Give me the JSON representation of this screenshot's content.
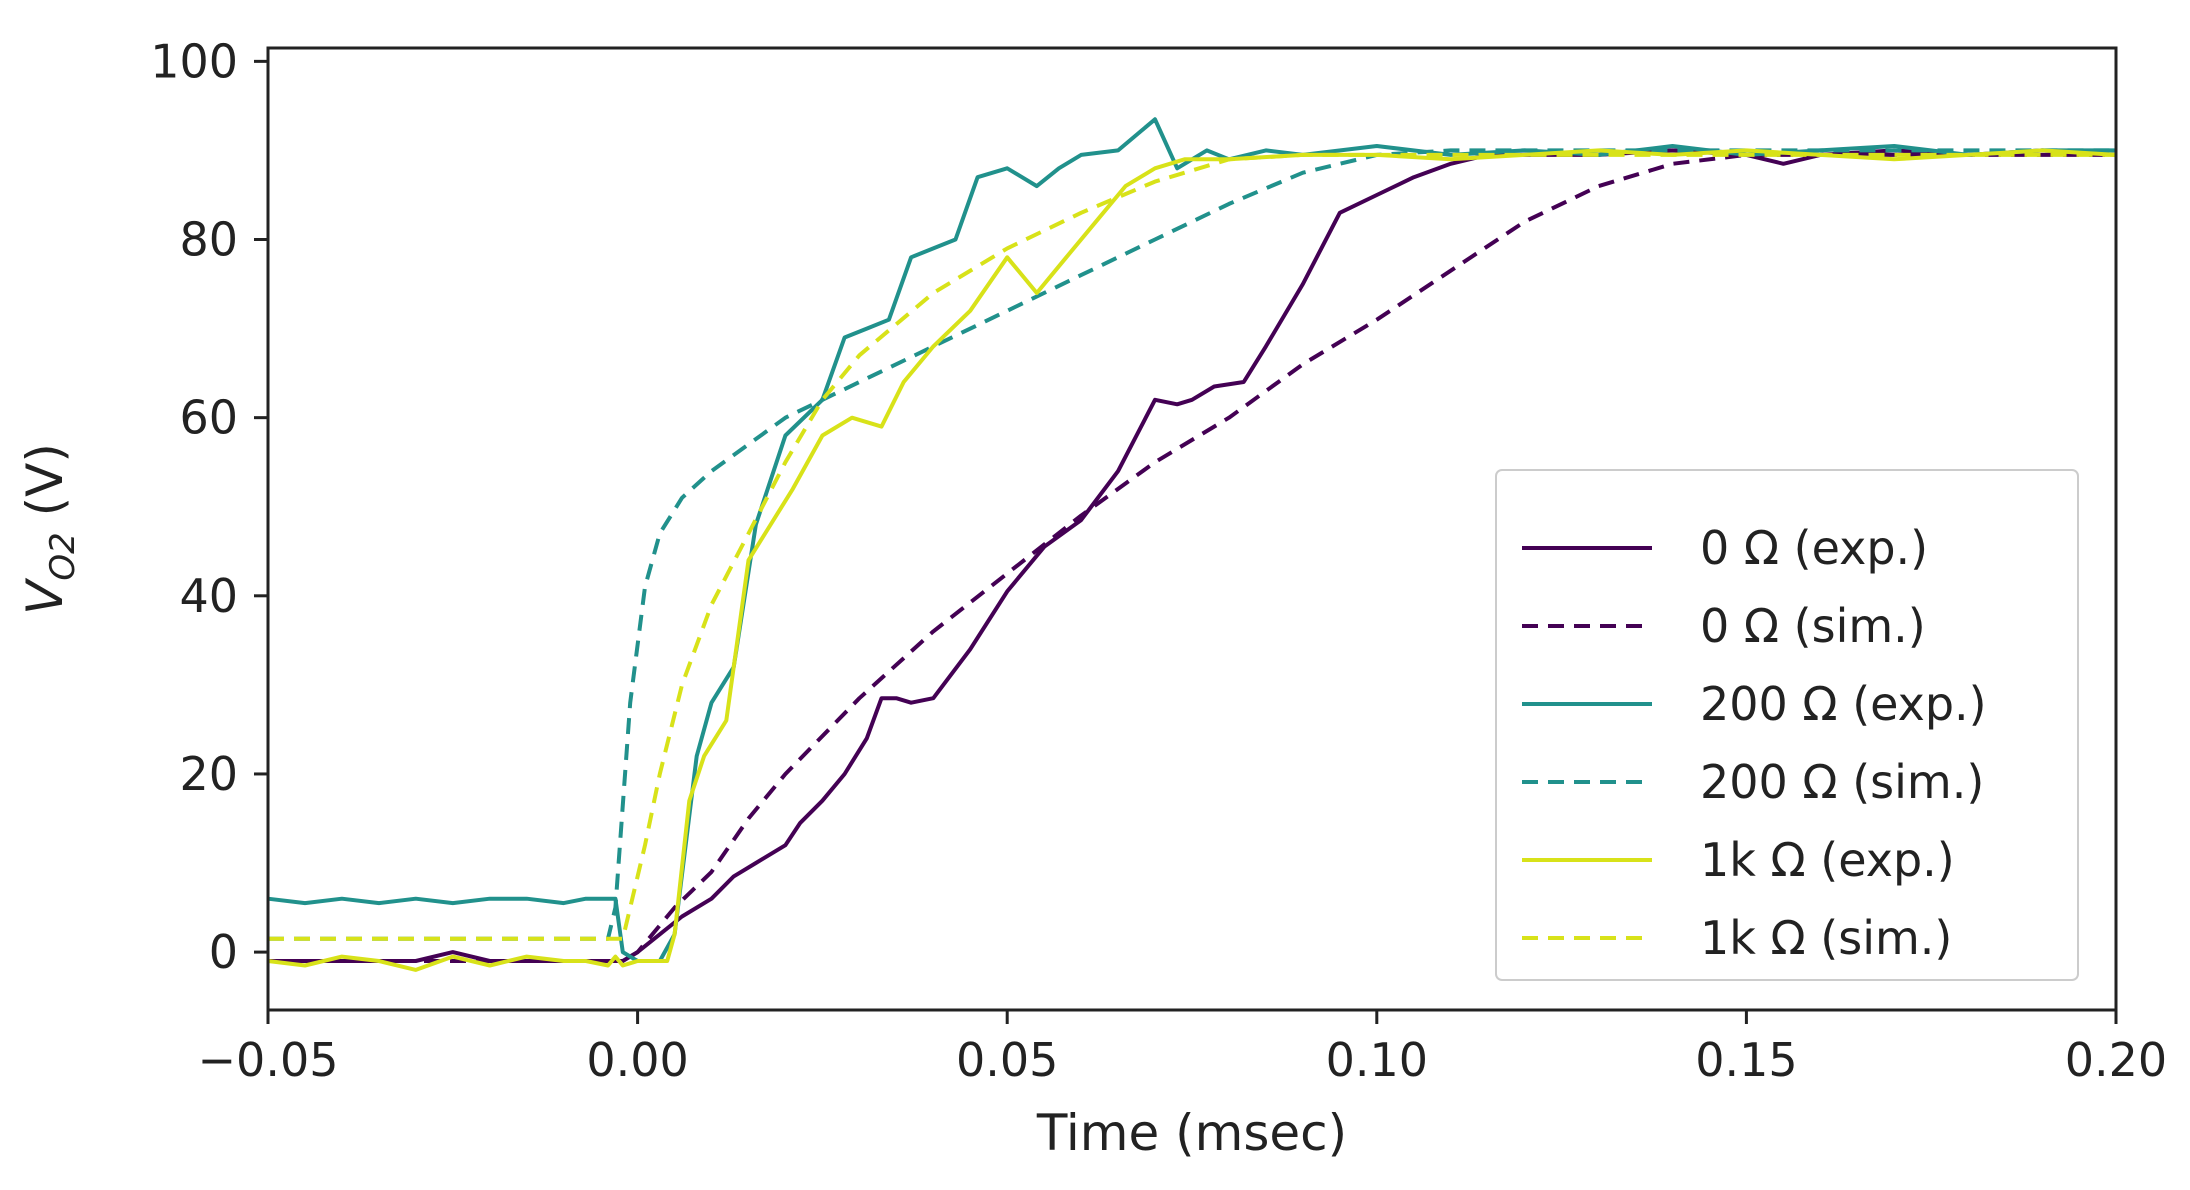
{
  "chart_data": {
    "type": "line",
    "title": "",
    "xlabel": "Time (msec)",
    "ylabel_main": "V",
    "ylabel_sub": "O2",
    "ylabel_unit": " (V)",
    "xlim": [
      -0.05,
      0.2
    ],
    "ylim": [
      -6.5,
      101.5
    ],
    "xticks": [
      -0.05,
      0.0,
      0.05,
      0.1,
      0.15,
      0.2
    ],
    "xtick_labels": [
      "−0.05",
      "0.00",
      "0.05",
      "0.10",
      "0.15",
      "0.20"
    ],
    "yticks": [
      0,
      20,
      40,
      60,
      80,
      100
    ],
    "ytick_labels": [
      "0",
      "20",
      "40",
      "60",
      "80",
      "100"
    ],
    "legend_position": "lower-right",
    "series": [
      {
        "name": "0 Ω (exp.)",
        "color": "#440154",
        "dash": "solid",
        "x": [
          -0.05,
          -0.04,
          -0.03,
          -0.025,
          -0.02,
          -0.015,
          -0.01,
          -0.005,
          -0.002,
          0.0,
          0.003,
          0.006,
          0.01,
          0.013,
          0.016,
          0.02,
          0.022,
          0.025,
          0.028,
          0.031,
          0.033,
          0.035,
          0.037,
          0.04,
          0.045,
          0.05,
          0.055,
          0.06,
          0.065,
          0.07,
          0.073,
          0.075,
          0.078,
          0.082,
          0.085,
          0.09,
          0.095,
          0.1,
          0.105,
          0.11,
          0.115,
          0.12,
          0.13,
          0.14,
          0.15,
          0.155,
          0.16,
          0.17,
          0.18,
          0.19,
          0.2
        ],
        "y": [
          -1,
          -1,
          -1,
          0,
          -1,
          -1,
          -1,
          -1,
          -1,
          0,
          2,
          4,
          6,
          8.5,
          10,
          12,
          14.5,
          17,
          20,
          24,
          28.5,
          28.5,
          28,
          28.5,
          34,
          40.5,
          45.5,
          48.5,
          54,
          62,
          61.5,
          62,
          63.5,
          64,
          68,
          75,
          83,
          85,
          87,
          88.5,
          89.5,
          89.5,
          89.5,
          90,
          89.5,
          88.5,
          89.5,
          90,
          89.5,
          90,
          89.5
        ]
      },
      {
        "name": "0 Ω (sim.)",
        "color": "#440154",
        "dash": "dashed",
        "x": [
          -0.05,
          -0.002,
          0.0,
          0.005,
          0.01,
          0.015,
          0.02,
          0.03,
          0.04,
          0.05,
          0.06,
          0.07,
          0.08,
          0.09,
          0.1,
          0.11,
          0.12,
          0.13,
          0.14,
          0.15,
          0.2
        ],
        "y": [
          -1,
          -1,
          0,
          5,
          9,
          15,
          20,
          28.5,
          36,
          42.5,
          49,
          55,
          60,
          66,
          71,
          76.5,
          82,
          86,
          88.5,
          89.5,
          89.5
        ]
      },
      {
        "name": "200 Ω (exp.)",
        "color": "#21918c",
        "dash": "solid",
        "x": [
          -0.05,
          -0.045,
          -0.04,
          -0.035,
          -0.03,
          -0.025,
          -0.02,
          -0.015,
          -0.01,
          -0.007,
          -0.003,
          -0.002,
          0.0,
          0.003,
          0.005,
          0.008,
          0.01,
          0.013,
          0.016,
          0.02,
          0.025,
          0.028,
          0.031,
          0.034,
          0.037,
          0.04,
          0.043,
          0.046,
          0.05,
          0.054,
          0.057,
          0.06,
          0.065,
          0.07,
          0.073,
          0.077,
          0.08,
          0.085,
          0.09,
          0.1,
          0.11,
          0.12,
          0.13,
          0.14,
          0.15,
          0.16,
          0.17,
          0.18,
          0.19,
          0.2
        ],
        "y": [
          6,
          5.5,
          6,
          5.5,
          6,
          5.5,
          6,
          6,
          5.5,
          6,
          6,
          0,
          -1,
          -1,
          2,
          22,
          28,
          32,
          48,
          58,
          62,
          69,
          70,
          71,
          78,
          79,
          80,
          87,
          88,
          86,
          88,
          89.5,
          90,
          93.5,
          88,
          90,
          89,
          90,
          89.5,
          90.5,
          89.5,
          90,
          89.5,
          90.5,
          89.5,
          90,
          90.5,
          89.5,
          90,
          90
        ]
      },
      {
        "name": "200 Ω (sim.)",
        "color": "#21918c",
        "dash": "dashed",
        "x": [
          -0.05,
          -0.004,
          -0.003,
          -0.001,
          0.001,
          0.003,
          0.006,
          0.01,
          0.015,
          0.02,
          0.03,
          0.04,
          0.05,
          0.06,
          0.07,
          0.08,
          0.09,
          0.1,
          0.11,
          0.2
        ],
        "y": [
          1.5,
          1.5,
          5,
          28,
          41,
          47,
          51,
          54,
          57,
          60,
          64,
          68,
          72,
          76,
          80,
          84,
          87.5,
          89.5,
          90,
          90
        ]
      },
      {
        "name": "1k Ω (exp.)",
        "color": "#d8e219",
        "dash": "solid",
        "x": [
          -0.05,
          -0.045,
          -0.04,
          -0.035,
          -0.03,
          -0.025,
          -0.02,
          -0.015,
          -0.01,
          -0.007,
          -0.004,
          -0.003,
          -0.002,
          0.0,
          0.002,
          0.004,
          0.005,
          0.007,
          0.009,
          0.012,
          0.015,
          0.018,
          0.021,
          0.025,
          0.029,
          0.033,
          0.036,
          0.04,
          0.045,
          0.05,
          0.054,
          0.058,
          0.062,
          0.066,
          0.07,
          0.074,
          0.08,
          0.09,
          0.1,
          0.11,
          0.12,
          0.13,
          0.14,
          0.15,
          0.16,
          0.17,
          0.18,
          0.19,
          0.2
        ],
        "y": [
          -1,
          -1.5,
          -0.5,
          -1,
          -2,
          -0.5,
          -1.5,
          -0.5,
          -1,
          -1,
          -1.5,
          -0.5,
          -1.5,
          -1,
          -1,
          -1,
          2,
          17,
          22,
          26,
          44,
          48,
          52,
          58,
          60,
          59,
          64,
          68,
          72,
          78,
          74,
          78,
          82,
          86,
          88,
          89,
          89,
          89.5,
          89.5,
          89,
          89.5,
          90,
          89.5,
          90,
          89.5,
          89,
          89.5,
          90,
          89.5
        ]
      },
      {
        "name": "1k Ω (sim.)",
        "color": "#d8e219",
        "dash": "dashed",
        "x": [
          -0.05,
          -0.002,
          -0.001,
          0.001,
          0.003,
          0.006,
          0.01,
          0.015,
          0.02,
          0.025,
          0.03,
          0.04,
          0.05,
          0.06,
          0.07,
          0.08,
          0.09,
          0.2
        ],
        "y": [
          1.5,
          1.5,
          5,
          12,
          20,
          30,
          39,
          47,
          55,
          62,
          67,
          74,
          79,
          83,
          86.5,
          89,
          89.5,
          89.5
        ]
      }
    ]
  }
}
